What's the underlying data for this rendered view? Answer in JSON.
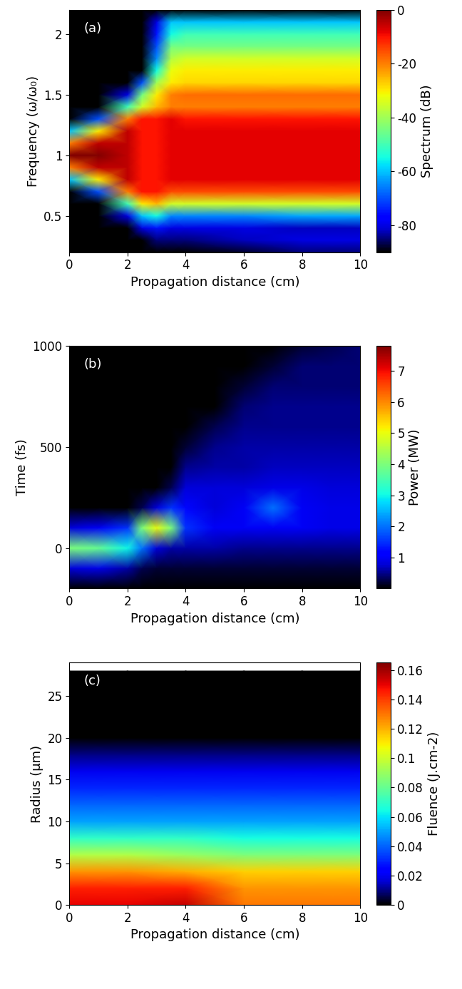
{
  "chart_data": [
    {
      "type": "heatmap",
      "annotation": "(a)",
      "x_label": "Propagation distance (cm)",
      "y_label": "Frequency (ω/ω₀)",
      "xlim": [
        0,
        10
      ],
      "xticks": [
        0,
        2,
        4,
        6,
        8,
        10
      ],
      "ylim": [
        0.2,
        2.2
      ],
      "yticks": [
        0.5,
        1,
        1.5,
        2
      ],
      "x": [
        0,
        1,
        2,
        2.5,
        3,
        3.5,
        4,
        6,
        8,
        10
      ],
      "y": [
        0.2,
        0.3,
        0.4,
        0.5,
        0.6,
        0.7,
        0.8,
        0.9,
        1.0,
        1.1,
        1.2,
        1.3,
        1.4,
        1.5,
        1.6,
        1.7,
        1.8,
        1.9,
        2.0,
        2.1,
        2.2
      ],
      "cells": [
        [
          -90,
          -90,
          -90,
          -90,
          -90,
          -90,
          -60,
          -20,
          0,
          -20,
          -60,
          -90,
          -90,
          -90,
          -90,
          -90,
          -90,
          -90,
          -90,
          -90,
          -90
        ],
        [
          -90,
          -90,
          -90,
          -90,
          -90,
          -70,
          -30,
          -5,
          0,
          -5,
          -30,
          -70,
          -90,
          -90,
          -90,
          -90,
          -90,
          -90,
          -90,
          -90,
          -90
        ],
        [
          -90,
          -90,
          -90,
          -80,
          -50,
          -20,
          -5,
          -5,
          -5,
          -5,
          -5,
          -20,
          -50,
          -80,
          -90,
          -90,
          -90,
          -90,
          -90,
          -90,
          -90
        ],
        [
          -90,
          -90,
          -80,
          -60,
          -30,
          -10,
          -10,
          -10,
          -10,
          -10,
          -10,
          -10,
          -35,
          -45,
          -70,
          -90,
          -90,
          -90,
          -90,
          -90,
          -90
        ],
        [
          -90,
          -85,
          -75,
          -55,
          -25,
          -10,
          -10,
          -10,
          -10,
          -10,
          -10,
          -10,
          -25,
          -30,
          -40,
          -55,
          -65,
          -70,
          -75,
          -80,
          -90
        ],
        [
          -90,
          -85,
          -80,
          -65,
          -35,
          -15,
          -8,
          -8,
          -8,
          -8,
          -8,
          -8,
          -20,
          -20,
          -30,
          -32,
          -38,
          -45,
          -55,
          -60,
          -90
        ],
        [
          -90,
          -85,
          -80,
          -65,
          -35,
          -15,
          -8,
          -8,
          -8,
          -8,
          -8,
          -10,
          -20,
          -18,
          -28,
          -30,
          -35,
          -45,
          -50,
          -60,
          -90
        ],
        [
          -88,
          -82,
          -80,
          -65,
          -35,
          -15,
          -8,
          -8,
          -8,
          -8,
          -8,
          -10,
          -20,
          -18,
          -28,
          -30,
          -35,
          -45,
          -50,
          -60,
          -90
        ],
        [
          -85,
          -80,
          -82,
          -62,
          -35,
          -15,
          -8,
          -8,
          -8,
          -8,
          -8,
          -10,
          -20,
          -18,
          -28,
          -30,
          -35,
          -45,
          -50,
          -60,
          -90
        ],
        [
          -85,
          -80,
          -82,
          -62,
          -35,
          -15,
          -8,
          -8,
          -8,
          -8,
          -8,
          -10,
          -20,
          -18,
          -28,
          -30,
          -35,
          -45,
          -50,
          -60,
          -90
        ]
      ],
      "colorbar": {
        "label": "Spectrum (dB)",
        "range": [
          -90,
          0
        ],
        "ticks": [
          0,
          -20,
          -40,
          -60,
          -80
        ]
      }
    },
    {
      "type": "heatmap",
      "annotation": "(b)",
      "x_label": "Propagation distance (cm)",
      "y_label": "Time (fs)",
      "xlim": [
        0,
        10
      ],
      "xticks": [
        0,
        2,
        4,
        6,
        8,
        10
      ],
      "ylim": [
        -200,
        1000
      ],
      "yticks": [
        0,
        500,
        1000
      ],
      "x": [
        0,
        1,
        2,
        2.5,
        3,
        3.5,
        4,
        5,
        6,
        7,
        8,
        9,
        10
      ],
      "y": [
        -200,
        -100,
        0,
        100,
        200,
        300,
        400,
        500,
        600,
        700,
        800,
        900,
        1000
      ],
      "cells": [
        [
          0,
          0.8,
          4,
          0.8,
          0,
          0,
          0,
          0,
          0,
          0,
          0,
          0,
          0
        ],
        [
          0,
          0.9,
          3.8,
          1,
          0,
          0,
          0,
          0,
          0,
          0,
          0,
          0,
          0
        ],
        [
          0,
          0.6,
          3,
          1.5,
          0,
          0,
          0,
          0,
          0,
          0,
          0,
          0,
          0
        ],
        [
          0,
          0.3,
          2,
          4,
          0.3,
          0,
          0,
          0,
          0,
          0,
          0,
          0,
          0
        ],
        [
          0,
          0.2,
          0.8,
          5,
          0.8,
          0,
          0,
          0,
          0,
          0,
          0,
          0,
          0
        ],
        [
          0,
          0.2,
          0.6,
          4,
          1.5,
          0.3,
          0,
          0,
          0,
          0,
          0,
          0,
          0
        ],
        [
          0,
          0.2,
          0.6,
          1.5,
          1.2,
          0.8,
          0.5,
          0.2,
          0,
          0,
          0,
          0,
          0
        ],
        [
          0,
          0.2,
          0.6,
          1,
          0.8,
          0.8,
          0.6,
          0.5,
          0.3,
          0,
          0,
          0,
          0
        ],
        [
          0,
          0.2,
          0.5,
          1,
          1,
          0.8,
          0.6,
          0.6,
          0.5,
          0.4,
          0.2,
          0,
          0
        ],
        [
          0,
          0.2,
          0.5,
          1,
          2,
          0.9,
          0.7,
          0.6,
          0.5,
          0.5,
          0.4,
          0.2,
          0
        ],
        [
          0,
          0.2,
          0.5,
          1,
          1,
          0.9,
          0.7,
          0.6,
          0.5,
          0.5,
          0.4,
          0.4,
          0.2
        ],
        [
          0,
          0.2,
          0.5,
          0.9,
          0.9,
          0.8,
          0.7,
          0.6,
          0.5,
          0.5,
          0.4,
          0.4,
          0.3
        ],
        [
          0,
          0.2,
          0.5,
          0.9,
          0.9,
          0.8,
          0.7,
          0.6,
          0.5,
          0.5,
          0.4,
          0.4,
          0.4
        ]
      ],
      "colorbar": {
        "label": "Power (MW)",
        "range": [
          0,
          7.8
        ],
        "ticks": [
          1,
          2,
          3,
          4,
          5,
          6,
          7
        ]
      }
    },
    {
      "type": "heatmap",
      "annotation": "(c)",
      "x_label": "Propagation distance (cm)",
      "y_label": "Radius (µm)",
      "xlim": [
        0,
        10
      ],
      "xticks": [
        0,
        2,
        4,
        6,
        8,
        10
      ],
      "ylim": [
        0,
        29
      ],
      "yticks": [
        0,
        5,
        10,
        15,
        20,
        25
      ],
      "x": [
        0,
        2,
        4,
        6,
        8,
        10
      ],
      "y": [
        0,
        2,
        4,
        6,
        8,
        10,
        12,
        14,
        16,
        18,
        20,
        22,
        24,
        26,
        28
      ],
      "cells": [
        [
          0.15,
          0.145,
          0.125,
          0.095,
          0.07,
          0.05,
          0.04,
          0.03,
          0.02,
          0.01,
          0,
          0,
          0,
          0,
          0
        ],
        [
          0.15,
          0.145,
          0.125,
          0.095,
          0.07,
          0.05,
          0.04,
          0.03,
          0.02,
          0.01,
          0,
          0,
          0,
          0,
          0
        ],
        [
          0.155,
          0.145,
          0.12,
          0.09,
          0.07,
          0.05,
          0.04,
          0.03,
          0.02,
          0.01,
          0,
          0,
          0,
          0,
          0
        ],
        [
          0.13,
          0.125,
          0.115,
          0.085,
          0.065,
          0.05,
          0.04,
          0.03,
          0.02,
          0.01,
          0,
          0,
          0,
          0,
          0
        ],
        [
          0.13,
          0.125,
          0.115,
          0.085,
          0.065,
          0.05,
          0.04,
          0.03,
          0.02,
          0.01,
          0,
          0,
          0,
          0,
          0
        ],
        [
          0.13,
          0.125,
          0.115,
          0.085,
          0.065,
          0.05,
          0.04,
          0.03,
          0.02,
          0.01,
          0,
          0,
          0,
          0,
          0
        ]
      ],
      "colorbar": {
        "label": "Fluence (J.cm-2)",
        "range": [
          0,
          0.165
        ],
        "ticks": [
          0,
          0.02,
          0.04,
          0.06,
          0.08,
          0.1,
          0.12,
          0.14,
          0.16
        ]
      }
    }
  ]
}
